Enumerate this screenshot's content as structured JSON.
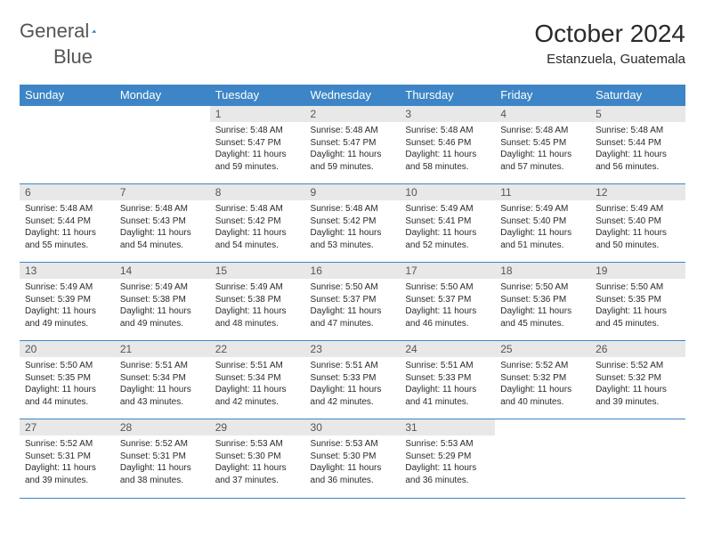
{
  "brand": {
    "word1": "General",
    "word2": "Blue",
    "accent_color": "#2b7ac0"
  },
  "title": "October 2024",
  "location": "Estanzuela, Guatemala",
  "theme": {
    "header_bg": "#3d85c6",
    "header_fg": "#ffffff",
    "daynum_bg": "#e8e8e8",
    "daynum_fg": "#555555",
    "body_text": "#2a2a2a",
    "rule_color": "#3d85c6",
    "page_bg": "#ffffff"
  },
  "dow": [
    "Sunday",
    "Monday",
    "Tuesday",
    "Wednesday",
    "Thursday",
    "Friday",
    "Saturday"
  ],
  "weeks": [
    [
      {
        "n": "",
        "sr": "",
        "ss": "",
        "dl": ""
      },
      {
        "n": "",
        "sr": "",
        "ss": "",
        "dl": ""
      },
      {
        "n": "1",
        "sr": "Sunrise: 5:48 AM",
        "ss": "Sunset: 5:47 PM",
        "dl": "Daylight: 11 hours and 59 minutes."
      },
      {
        "n": "2",
        "sr": "Sunrise: 5:48 AM",
        "ss": "Sunset: 5:47 PM",
        "dl": "Daylight: 11 hours and 59 minutes."
      },
      {
        "n": "3",
        "sr": "Sunrise: 5:48 AM",
        "ss": "Sunset: 5:46 PM",
        "dl": "Daylight: 11 hours and 58 minutes."
      },
      {
        "n": "4",
        "sr": "Sunrise: 5:48 AM",
        "ss": "Sunset: 5:45 PM",
        "dl": "Daylight: 11 hours and 57 minutes."
      },
      {
        "n": "5",
        "sr": "Sunrise: 5:48 AM",
        "ss": "Sunset: 5:44 PM",
        "dl": "Daylight: 11 hours and 56 minutes."
      }
    ],
    [
      {
        "n": "6",
        "sr": "Sunrise: 5:48 AM",
        "ss": "Sunset: 5:44 PM",
        "dl": "Daylight: 11 hours and 55 minutes."
      },
      {
        "n": "7",
        "sr": "Sunrise: 5:48 AM",
        "ss": "Sunset: 5:43 PM",
        "dl": "Daylight: 11 hours and 54 minutes."
      },
      {
        "n": "8",
        "sr": "Sunrise: 5:48 AM",
        "ss": "Sunset: 5:42 PM",
        "dl": "Daylight: 11 hours and 54 minutes."
      },
      {
        "n": "9",
        "sr": "Sunrise: 5:48 AM",
        "ss": "Sunset: 5:42 PM",
        "dl": "Daylight: 11 hours and 53 minutes."
      },
      {
        "n": "10",
        "sr": "Sunrise: 5:49 AM",
        "ss": "Sunset: 5:41 PM",
        "dl": "Daylight: 11 hours and 52 minutes."
      },
      {
        "n": "11",
        "sr": "Sunrise: 5:49 AM",
        "ss": "Sunset: 5:40 PM",
        "dl": "Daylight: 11 hours and 51 minutes."
      },
      {
        "n": "12",
        "sr": "Sunrise: 5:49 AM",
        "ss": "Sunset: 5:40 PM",
        "dl": "Daylight: 11 hours and 50 minutes."
      }
    ],
    [
      {
        "n": "13",
        "sr": "Sunrise: 5:49 AM",
        "ss": "Sunset: 5:39 PM",
        "dl": "Daylight: 11 hours and 49 minutes."
      },
      {
        "n": "14",
        "sr": "Sunrise: 5:49 AM",
        "ss": "Sunset: 5:38 PM",
        "dl": "Daylight: 11 hours and 49 minutes."
      },
      {
        "n": "15",
        "sr": "Sunrise: 5:49 AM",
        "ss": "Sunset: 5:38 PM",
        "dl": "Daylight: 11 hours and 48 minutes."
      },
      {
        "n": "16",
        "sr": "Sunrise: 5:50 AM",
        "ss": "Sunset: 5:37 PM",
        "dl": "Daylight: 11 hours and 47 minutes."
      },
      {
        "n": "17",
        "sr": "Sunrise: 5:50 AM",
        "ss": "Sunset: 5:37 PM",
        "dl": "Daylight: 11 hours and 46 minutes."
      },
      {
        "n": "18",
        "sr": "Sunrise: 5:50 AM",
        "ss": "Sunset: 5:36 PM",
        "dl": "Daylight: 11 hours and 45 minutes."
      },
      {
        "n": "19",
        "sr": "Sunrise: 5:50 AM",
        "ss": "Sunset: 5:35 PM",
        "dl": "Daylight: 11 hours and 45 minutes."
      }
    ],
    [
      {
        "n": "20",
        "sr": "Sunrise: 5:50 AM",
        "ss": "Sunset: 5:35 PM",
        "dl": "Daylight: 11 hours and 44 minutes."
      },
      {
        "n": "21",
        "sr": "Sunrise: 5:51 AM",
        "ss": "Sunset: 5:34 PM",
        "dl": "Daylight: 11 hours and 43 minutes."
      },
      {
        "n": "22",
        "sr": "Sunrise: 5:51 AM",
        "ss": "Sunset: 5:34 PM",
        "dl": "Daylight: 11 hours and 42 minutes."
      },
      {
        "n": "23",
        "sr": "Sunrise: 5:51 AM",
        "ss": "Sunset: 5:33 PM",
        "dl": "Daylight: 11 hours and 42 minutes."
      },
      {
        "n": "24",
        "sr": "Sunrise: 5:51 AM",
        "ss": "Sunset: 5:33 PM",
        "dl": "Daylight: 11 hours and 41 minutes."
      },
      {
        "n": "25",
        "sr": "Sunrise: 5:52 AM",
        "ss": "Sunset: 5:32 PM",
        "dl": "Daylight: 11 hours and 40 minutes."
      },
      {
        "n": "26",
        "sr": "Sunrise: 5:52 AM",
        "ss": "Sunset: 5:32 PM",
        "dl": "Daylight: 11 hours and 39 minutes."
      }
    ],
    [
      {
        "n": "27",
        "sr": "Sunrise: 5:52 AM",
        "ss": "Sunset: 5:31 PM",
        "dl": "Daylight: 11 hours and 39 minutes."
      },
      {
        "n": "28",
        "sr": "Sunrise: 5:52 AM",
        "ss": "Sunset: 5:31 PM",
        "dl": "Daylight: 11 hours and 38 minutes."
      },
      {
        "n": "29",
        "sr": "Sunrise: 5:53 AM",
        "ss": "Sunset: 5:30 PM",
        "dl": "Daylight: 11 hours and 37 minutes."
      },
      {
        "n": "30",
        "sr": "Sunrise: 5:53 AM",
        "ss": "Sunset: 5:30 PM",
        "dl": "Daylight: 11 hours and 36 minutes."
      },
      {
        "n": "31",
        "sr": "Sunrise: 5:53 AM",
        "ss": "Sunset: 5:29 PM",
        "dl": "Daylight: 11 hours and 36 minutes."
      },
      {
        "n": "",
        "sr": "",
        "ss": "",
        "dl": ""
      },
      {
        "n": "",
        "sr": "",
        "ss": "",
        "dl": ""
      }
    ]
  ]
}
